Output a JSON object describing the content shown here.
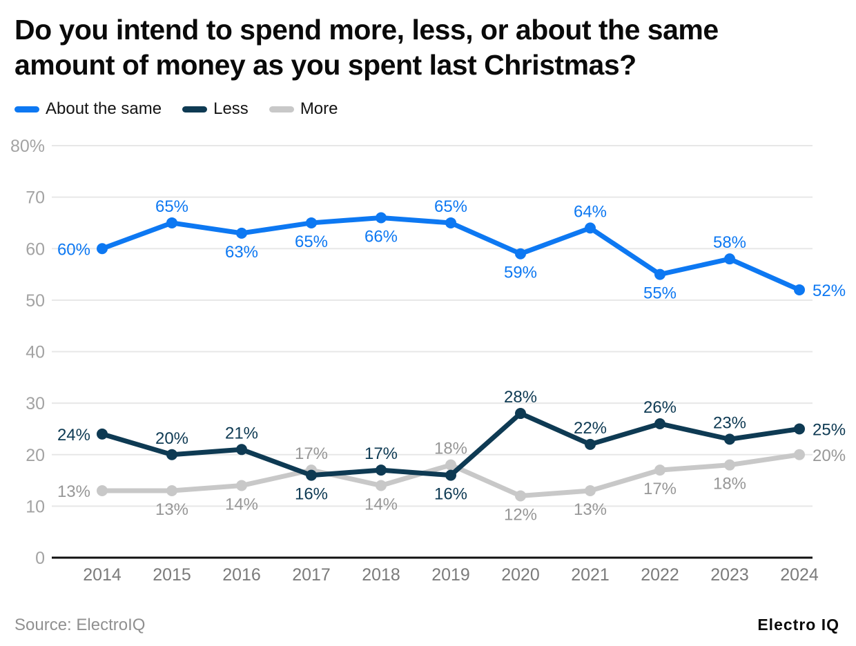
{
  "title": {
    "line1": "Do you intend to spend more, less, or about the same",
    "line2": "amount of money as you spent last Christmas?"
  },
  "footer": {
    "source": "Source: ElectroIQ",
    "brand": "Electro IQ"
  },
  "colors": {
    "about_the_same": "#0d78f2",
    "less": "#0e3a53",
    "more": "#c8c8c8",
    "grid": "#e7e7e7",
    "axis": "#111111",
    "y_tick": "#a3a3a3",
    "x_tick": "#7b7b7b"
  },
  "chart_data": {
    "type": "line",
    "title": "Do you intend to spend more, less, or about the same amount of money as you spent last Christmas?",
    "x": [
      "2014",
      "2015",
      "2016",
      "2017",
      "2018",
      "2019",
      "2020",
      "2021",
      "2022",
      "2023",
      "2024"
    ],
    "series": [
      {
        "name": "About the same",
        "color": "#0d78f2",
        "label_color": "#0d78f2",
        "values": [
          60,
          65,
          63,
          65,
          66,
          65,
          59,
          64,
          55,
          58,
          52
        ],
        "labels": [
          "60%",
          "65%",
          "63%",
          "65%",
          "66%",
          "65%",
          "59%",
          "64%",
          "55%",
          "58%",
          "52%"
        ],
        "label_pos": [
          "left",
          "above",
          "below",
          "below",
          "below",
          "above",
          "below",
          "above",
          "below",
          "above",
          "right"
        ]
      },
      {
        "name": "Less",
        "color": "#0e3a53",
        "label_color": "#0e3a53",
        "values": [
          24,
          20,
          21,
          16,
          17,
          16,
          28,
          22,
          26,
          23,
          25
        ],
        "labels": [
          "24%",
          "20%",
          "21%",
          "16%",
          "17%",
          "16%",
          "28%",
          "22%",
          "26%",
          "23%",
          "25%"
        ],
        "label_pos": [
          "left",
          "above",
          "above",
          "below",
          "above",
          "below",
          "above",
          "above",
          "above",
          "above",
          "right"
        ]
      },
      {
        "name": "More",
        "color": "#c8c8c8",
        "label_color": "#979797",
        "values": [
          13,
          13,
          14,
          17,
          14,
          18,
          12,
          13,
          17,
          18,
          20
        ],
        "labels": [
          "13%",
          "13%",
          "14%",
          "17%",
          "14%",
          "18%",
          "12%",
          "13%",
          "17%",
          "18%",
          "20%"
        ],
        "label_pos": [
          "left",
          "below",
          "below",
          "above",
          "below",
          "above",
          "below",
          "below",
          "below",
          "below",
          "right"
        ]
      }
    ],
    "ylim": [
      0,
      80
    ],
    "yticks": [
      0,
      10,
      20,
      30,
      40,
      50,
      60,
      70,
      80
    ],
    "ytick_labels": [
      "0",
      "10",
      "20",
      "30",
      "40",
      "50",
      "60",
      "70",
      "80%"
    ],
    "grid": "horizontal",
    "legend_position": "top-left",
    "xlabel": "",
    "ylabel": ""
  }
}
